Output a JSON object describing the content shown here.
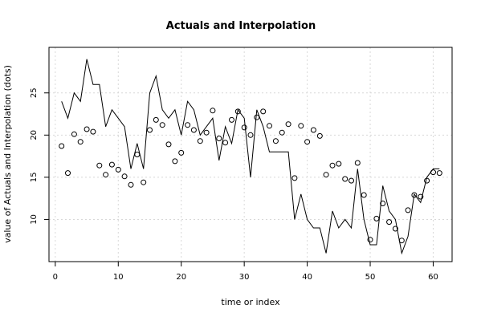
{
  "chart_data": {
    "type": "line",
    "title": "Actuals and Interpolation",
    "xlabel": "time or index",
    "ylabel": "value of Actuals and Interpolation (dots)",
    "xlim": [
      -1,
      63
    ],
    "ylim": [
      5,
      30.4
    ],
    "x_ticks": [
      0,
      10,
      20,
      30,
      40,
      50,
      60
    ],
    "y_ticks": [
      10,
      15,
      20,
      25
    ],
    "grid": true,
    "series": [
      {
        "style": "line",
        "x": [
          1,
          2,
          3,
          4,
          5,
          6,
          7,
          8,
          9,
          10,
          11,
          12,
          13,
          14,
          15,
          16,
          17,
          18,
          19,
          20,
          21,
          22,
          23,
          24,
          25,
          26,
          27,
          28,
          29,
          30,
          31,
          32,
          33,
          34,
          35,
          36,
          37,
          38,
          39,
          40,
          41,
          42,
          43,
          44,
          45,
          46,
          47,
          48,
          49,
          50,
          51,
          52,
          53,
          54,
          55,
          56,
          57,
          58,
          59,
          60,
          61
        ],
        "values": [
          24,
          22,
          25,
          24,
          29,
          26,
          26,
          21,
          23,
          22,
          21,
          16,
          19,
          16,
          25,
          27,
          23,
          22,
          23,
          20,
          24,
          23,
          20,
          21,
          22,
          17,
          21,
          19,
          23,
          22,
          15,
          23,
          21,
          18,
          18,
          18,
          18,
          10,
          13,
          10,
          9,
          9,
          6,
          11,
          9,
          10,
          9,
          16,
          10,
          7,
          7,
          14,
          11,
          10,
          6,
          8,
          13,
          12,
          15,
          16,
          16
        ]
      },
      {
        "style": "points",
        "x": [
          1,
          2,
          3,
          4,
          5,
          6,
          7,
          8,
          9,
          10,
          11,
          12,
          13,
          14,
          15,
          16,
          17,
          18,
          19,
          20,
          21,
          22,
          23,
          24,
          25,
          26,
          27,
          28,
          29,
          30,
          31,
          32,
          33,
          34,
          35,
          36,
          37,
          38,
          39,
          40,
          41,
          42,
          43,
          44,
          45,
          46,
          47,
          48,
          49,
          50,
          51,
          52,
          53,
          54,
          55,
          56,
          57,
          58,
          59,
          60,
          61
        ],
        "values": [
          18.7,
          15.5,
          20.1,
          19.2,
          20.7,
          20.4,
          16.4,
          15.3,
          16.5,
          15.9,
          15.1,
          14.1,
          17.7,
          14.4,
          20.6,
          21.8,
          21.2,
          18.9,
          16.9,
          17.9,
          21.2,
          20.6,
          19.3,
          20.3,
          22.9,
          19.6,
          19.1,
          21.8,
          22.8,
          20.9,
          20.0,
          22.1,
          22.8,
          21.1,
          19.3,
          20.3,
          21.3,
          14.9,
          21.1,
          19.2,
          20.6,
          19.9,
          15.3,
          16.4,
          16.6,
          14.8,
          14.6,
          16.7,
          12.9,
          7.6,
          10.1,
          11.9,
          9.7,
          8.9,
          7.5,
          11.1,
          12.9,
          12.7,
          14.6,
          15.6,
          15.5
        ]
      }
    ]
  }
}
